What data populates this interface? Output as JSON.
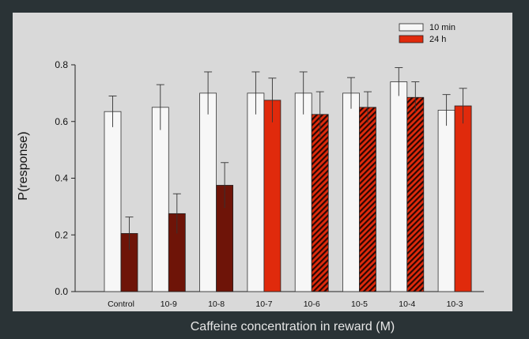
{
  "chart_data": {
    "type": "bar",
    "xlabel": "Caffeine concentration in reward (M)",
    "ylabel": "P(response)",
    "ylim": [
      0,
      0.8
    ],
    "yticks": [
      "0.0",
      "0.2",
      "0.4",
      "0.6",
      "0.8"
    ],
    "categories": [
      "Control",
      "10-9",
      "10-8",
      "10-7",
      "10-6",
      "10-5",
      "10-4",
      "10-3"
    ],
    "legend_position": "top-right",
    "series": [
      {
        "name": "10 min",
        "values": [
          0.635,
          0.65,
          0.7,
          0.7,
          0.7,
          0.7,
          0.74,
          0.64
        ],
        "errors": [
          0.055,
          0.08,
          0.075,
          0.075,
          0.075,
          0.055,
          0.05,
          0.055
        ]
      },
      {
        "name": "24 h",
        "values": [
          0.205,
          0.275,
          0.375,
          0.675,
          0.625,
          0.65,
          0.685,
          0.655
        ],
        "errors": [
          0.058,
          0.07,
          0.08,
          0.078,
          0.08,
          0.055,
          0.055,
          0.062
        ],
        "styles": [
          "dark",
          "dark",
          "dark",
          "red",
          "hatched",
          "hatched",
          "hatched",
          "red"
        ]
      }
    ]
  },
  "colors": {
    "bar_10min_fill": "#f7f7f7",
    "bar_24h_red": "#e02a0c",
    "bar_24h_dark": "#6e1408",
    "hatch_line": "#2a0804",
    "panel": "#d9d9d9",
    "slide_background": "#2a3336",
    "axis_label_text": "#e6e6e6"
  }
}
